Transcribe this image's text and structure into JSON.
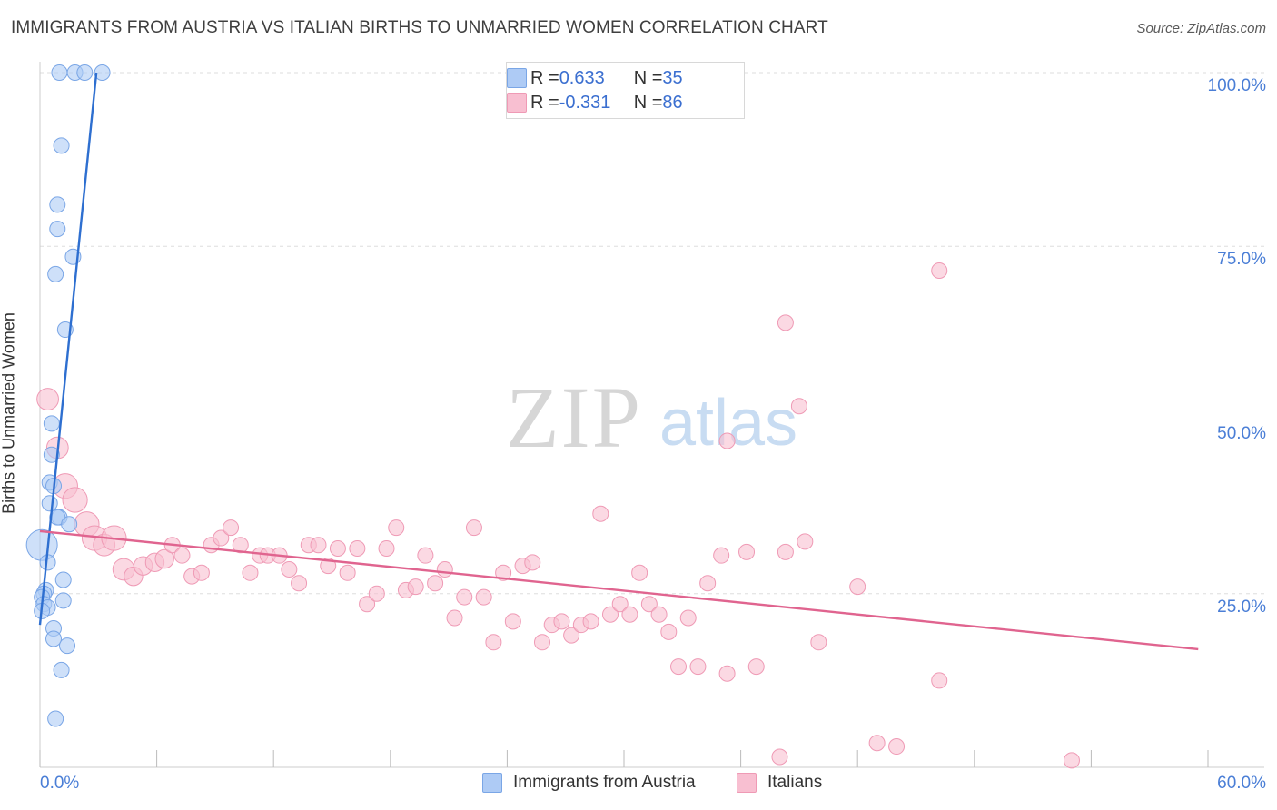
{
  "header": {
    "title": "IMMIGRANTS FROM AUSTRIA VS ITALIAN BIRTHS TO UNMARRIED WOMEN CORRELATION CHART",
    "source": "Source: ZipAtlas.com"
  },
  "watermark": {
    "zip": "ZIP",
    "atlas": "atlas"
  },
  "legend_top": {
    "rows": [
      {
        "r_label": "R = ",
        "r_value": "0.633",
        "n_label": "N = ",
        "n_value": "35",
        "color": "#aecbf5"
      },
      {
        "r_label": "R = ",
        "r_value": "-0.331",
        "n_label": "N = ",
        "n_value": "86",
        "color": "#f8bfd1"
      }
    ]
  },
  "legend_bottom": [
    {
      "label": "Immigrants from Austria",
      "color": "#aecbf5"
    },
    {
      "label": "Italians",
      "color": "#f8bfd1"
    }
  ],
  "chart_data": {
    "type": "scatter",
    "title": "IMMIGRANTS FROM AUSTRIA VS ITALIAN BIRTHS TO UNMARRIED WOMEN CORRELATION CHART",
    "xlabel": "",
    "ylabel": "Births to Unmarried Women",
    "xlim": [
      0,
      60
    ],
    "ylim": [
      0,
      100
    ],
    "x_tick_labels": {
      "min": "0.0%",
      "max": "60.0%"
    },
    "y_ticks": [
      {
        "value": 25,
        "label": "25.0%"
      },
      {
        "value": 50,
        "label": "50.0%"
      },
      {
        "value": 75,
        "label": "75.0%"
      },
      {
        "value": 100,
        "label": "100.0%"
      }
    ],
    "grid": true,
    "series": [
      {
        "name": "Immigrants from Austria",
        "color": "#aecbf5",
        "stroke": "#7aa6e6",
        "trend_color": "#2e6fd0",
        "trend": [
          [
            0.0,
            20.5
          ],
          [
            2.9,
            100.0
          ]
        ],
        "points": [
          [
            1.0,
            100.0,
            1
          ],
          [
            1.8,
            100.0,
            1
          ],
          [
            2.3,
            100.0,
            1
          ],
          [
            3.2,
            100.0,
            1
          ],
          [
            1.1,
            89.5,
            1
          ],
          [
            0.9,
            81.0,
            1
          ],
          [
            0.9,
            77.5,
            1
          ],
          [
            1.7,
            73.5,
            1
          ],
          [
            0.8,
            71.0,
            1
          ],
          [
            1.3,
            63.0,
            1
          ],
          [
            0.6,
            49.5,
            1
          ],
          [
            0.6,
            45.0,
            1
          ],
          [
            0.5,
            41.0,
            1
          ],
          [
            0.7,
            40.5,
            1
          ],
          [
            0.5,
            38.0,
            1
          ],
          [
            1.0,
            36.0,
            1
          ],
          [
            0.9,
            36.0,
            1
          ],
          [
            1.5,
            35.0,
            1
          ],
          [
            0.1,
            32.0,
            2
          ],
          [
            0.4,
            29.5,
            1
          ],
          [
            1.2,
            27.0,
            1
          ],
          [
            0.3,
            25.5,
            1
          ],
          [
            0.2,
            25.0,
            1
          ],
          [
            0.1,
            24.5,
            1
          ],
          [
            1.2,
            24.0,
            1
          ],
          [
            0.2,
            23.5,
            1
          ],
          [
            0.4,
            23.0,
            1
          ],
          [
            0.1,
            22.5,
            1
          ],
          [
            0.7,
            20.0,
            1
          ],
          [
            0.7,
            18.5,
            1
          ],
          [
            1.4,
            17.5,
            1
          ],
          [
            1.1,
            14.0,
            1
          ],
          [
            0.8,
            7.0,
            1
          ]
        ]
      },
      {
        "name": "Italians",
        "color": "#f8bfd1",
        "stroke": "#ef9ab5",
        "trend_color": "#e0648f",
        "trend": [
          [
            0.0,
            34.0
          ],
          [
            59.5,
            17.0
          ]
        ],
        "points": [
          [
            0.4,
            53.0,
            1.4
          ],
          [
            0.9,
            46.0,
            1.4
          ],
          [
            1.3,
            40.5,
            1.6
          ],
          [
            1.8,
            38.5,
            1.6
          ],
          [
            2.4,
            35.0,
            1.6
          ],
          [
            2.8,
            33.0,
            1.6
          ],
          [
            3.3,
            32.0,
            1.4
          ],
          [
            3.8,
            33.0,
            1.6
          ],
          [
            4.3,
            28.5,
            1.4
          ],
          [
            4.8,
            27.5,
            1.2
          ],
          [
            5.3,
            29.0,
            1.2
          ],
          [
            5.9,
            29.5,
            1.2
          ],
          [
            6.4,
            30.0,
            1.2
          ],
          [
            6.8,
            32.0,
            1
          ],
          [
            7.3,
            30.5,
            1
          ],
          [
            7.8,
            27.5,
            1
          ],
          [
            8.3,
            28.0,
            1
          ],
          [
            8.8,
            32.0,
            1
          ],
          [
            9.3,
            33.0,
            1
          ],
          [
            9.8,
            34.5,
            1
          ],
          [
            10.3,
            32.0,
            1
          ],
          [
            10.8,
            28.0,
            1
          ],
          [
            11.3,
            30.5,
            1
          ],
          [
            11.7,
            30.5,
            1
          ],
          [
            12.3,
            30.5,
            1
          ],
          [
            12.8,
            28.5,
            1
          ],
          [
            13.3,
            26.5,
            1
          ],
          [
            13.8,
            32.0,
            1
          ],
          [
            14.3,
            32.0,
            1
          ],
          [
            14.8,
            29.0,
            1
          ],
          [
            15.3,
            31.5,
            1
          ],
          [
            15.8,
            28.0,
            1
          ],
          [
            16.3,
            31.5,
            1
          ],
          [
            16.8,
            23.5,
            1
          ],
          [
            17.3,
            25.0,
            1
          ],
          [
            17.8,
            31.5,
            1
          ],
          [
            18.3,
            34.5,
            1
          ],
          [
            18.8,
            25.5,
            1
          ],
          [
            19.3,
            26.0,
            1
          ],
          [
            19.8,
            30.5,
            1
          ],
          [
            20.3,
            26.5,
            1
          ],
          [
            20.8,
            28.5,
            1
          ],
          [
            21.3,
            21.5,
            1
          ],
          [
            21.8,
            24.5,
            1
          ],
          [
            22.3,
            34.5,
            1
          ],
          [
            22.8,
            24.5,
            1
          ],
          [
            23.3,
            18.0,
            1
          ],
          [
            23.8,
            28.0,
            1
          ],
          [
            24.3,
            21.0,
            1
          ],
          [
            24.8,
            29.0,
            1
          ],
          [
            25.3,
            29.5,
            1
          ],
          [
            25.8,
            18.0,
            1
          ],
          [
            26.3,
            20.5,
            1
          ],
          [
            26.8,
            21.0,
            1
          ],
          [
            27.3,
            19.0,
            1
          ],
          [
            27.8,
            20.5,
            1
          ],
          [
            28.3,
            21.0,
            1
          ],
          [
            28.8,
            36.5,
            1
          ],
          [
            29.3,
            22.0,
            1
          ],
          [
            29.8,
            23.5,
            1
          ],
          [
            30.3,
            22.0,
            1
          ],
          [
            30.8,
            28.0,
            1
          ],
          [
            31.3,
            23.5,
            1
          ],
          [
            31.8,
            22.0,
            1
          ],
          [
            32.3,
            19.5,
            1
          ],
          [
            32.8,
            14.5,
            1
          ],
          [
            33.3,
            21.5,
            1
          ],
          [
            33.8,
            14.5,
            1
          ],
          [
            34.3,
            26.5,
            1
          ],
          [
            35.0,
            30.5,
            1
          ],
          [
            35.3,
            13.5,
            1
          ],
          [
            36.3,
            31.0,
            1
          ],
          [
            36.8,
            14.5,
            1
          ],
          [
            38.0,
            1.5,
            1
          ],
          [
            38.3,
            64.0,
            1
          ],
          [
            38.3,
            31.0,
            1
          ],
          [
            39.0,
            52.0,
            1
          ],
          [
            39.3,
            32.5,
            1
          ],
          [
            40.0,
            18.0,
            1
          ],
          [
            42.0,
            26.0,
            1
          ],
          [
            43.0,
            3.5,
            1
          ],
          [
            44.0,
            3.0,
            1
          ],
          [
            46.2,
            71.5,
            1
          ],
          [
            46.2,
            12.5,
            1
          ],
          [
            35.3,
            47.0,
            1
          ],
          [
            53.0,
            1.0,
            1
          ]
        ]
      }
    ]
  }
}
